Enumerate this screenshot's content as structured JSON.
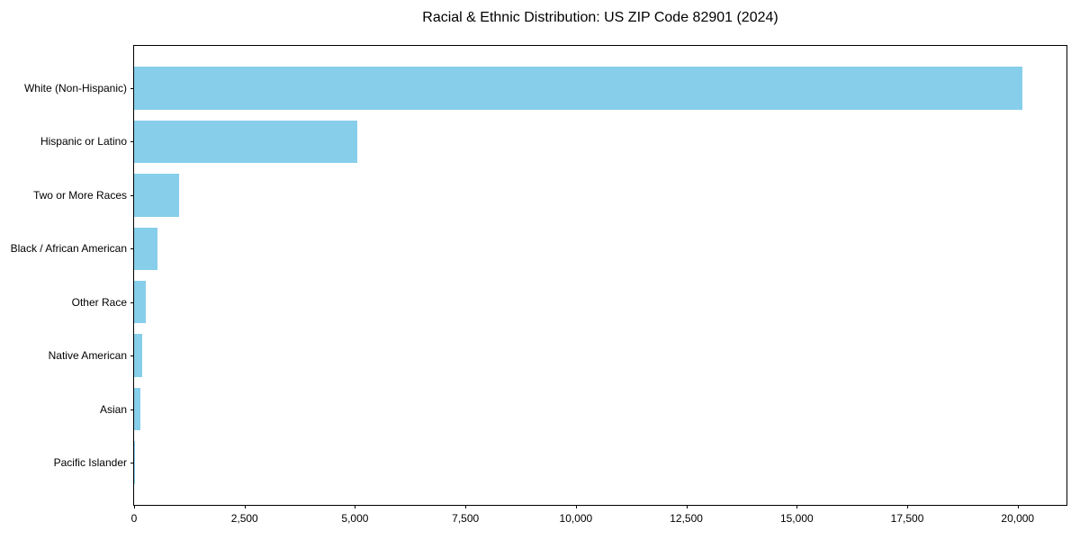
{
  "chart_data": {
    "type": "bar",
    "orientation": "horizontal",
    "title": "Racial & Ethnic Distribution: US ZIP Code 82901 (2024)",
    "categories": [
      "White (Non-Hispanic)",
      "Hispanic or Latino",
      "Two or More Races",
      "Black / African American",
      "Other Race",
      "Native American",
      "Asian",
      "Pacific Islander"
    ],
    "values": [
      20100,
      5050,
      1020,
      520,
      270,
      190,
      140,
      10
    ],
    "bar_color": "#87CEEB",
    "axis_color": "#000000",
    "text_color": "#000000",
    "xlabel": "",
    "ylabel": "",
    "xlim": [
      0,
      21105
    ],
    "xticks": [
      0,
      2500,
      5000,
      7500,
      10000,
      12500,
      15000,
      17500,
      20000
    ],
    "xtick_labels": [
      "0",
      "2,500",
      "5,000",
      "7,500",
      "10,000",
      "12,500",
      "15,000",
      "17,500",
      "20,000"
    ],
    "bar_height_fraction": 0.8,
    "grid": false,
    "legend": "none"
  }
}
